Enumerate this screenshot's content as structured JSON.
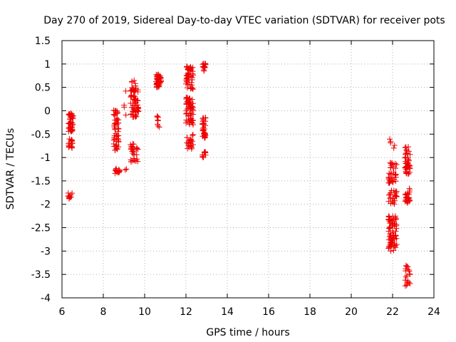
{
  "chart_data": {
    "type": "scatter",
    "title": "Day 270 of 2019, Sidereal Day-to-day VTEC variation (SDTVAR) for receiver pots",
    "xlabel": "GPS time / hours",
    "ylabel": "SDTVAR / TECUs",
    "xlim": [
      6,
      24
    ],
    "ylim": [
      -4,
      1.5
    ],
    "grid": true,
    "x_ticks": [
      "6",
      "8",
      "10",
      "12",
      "14",
      "16",
      "18",
      "20",
      "22",
      "24"
    ],
    "y_ticks": [
      "1.5",
      "1",
      "0.5",
      "0",
      "-0.5",
      "-1",
      "-1.5",
      "-2",
      "-2.5",
      "-3",
      "-3.5",
      "-4"
    ],
    "marker": "+",
    "color": "#ee0000",
    "clusters": [
      {
        "x": [
          6.3,
          6.55
        ],
        "y": [
          -0.45,
          -0.05
        ],
        "n": 45
      },
      {
        "x": [
          6.3,
          6.5
        ],
        "y": [
          -0.8,
          -0.6
        ],
        "n": 18
      },
      {
        "x": [
          6.3,
          6.5
        ],
        "y": [
          -1.88,
          -1.75
        ],
        "n": 12
      },
      {
        "x": [
          8.5,
          8.75
        ],
        "y": [
          -0.85,
          0.02
        ],
        "n": 55
      },
      {
        "x": [
          8.55,
          8.8
        ],
        "y": [
          -1.35,
          -1.22
        ],
        "n": 18
      },
      {
        "x": [
          9.0,
          9.1
        ],
        "y": [
          -0.1,
          0.5
        ],
        "n": 4
      },
      {
        "x": [
          9.05,
          9.15
        ],
        "y": [
          -1.27,
          -1.23
        ],
        "n": 2
      },
      {
        "x": [
          9.3,
          9.7
        ],
        "y": [
          -0.15,
          0.45
        ],
        "n": 55
      },
      {
        "x": [
          9.35,
          9.6
        ],
        "y": [
          0.45,
          0.65
        ],
        "n": 10
      },
      {
        "x": [
          9.3,
          9.7
        ],
        "y": [
          -1.1,
          -0.7
        ],
        "n": 30
      },
      {
        "x": [
          10.55,
          10.8
        ],
        "y": [
          0.5,
          0.8
        ],
        "n": 45
      },
      {
        "x": [
          10.6,
          10.75
        ],
        "y": [
          -0.35,
          -0.1
        ],
        "n": 8
      },
      {
        "x": [
          12.0,
          12.35
        ],
        "y": [
          0.45,
          0.95
        ],
        "n": 50
      },
      {
        "x": [
          12.0,
          12.35
        ],
        "y": [
          -0.3,
          0.3
        ],
        "n": 60
      },
      {
        "x": [
          12.0,
          12.35
        ],
        "y": [
          -0.85,
          -0.5
        ],
        "n": 25
      },
      {
        "x": [
          12.8,
          12.95
        ],
        "y": [
          0.85,
          1.02
        ],
        "n": 14
      },
      {
        "x": [
          12.8,
          12.95
        ],
        "y": [
          -0.6,
          -0.1
        ],
        "n": 35
      },
      {
        "x": [
          12.8,
          12.95
        ],
        "y": [
          -1.0,
          -0.85
        ],
        "n": 10
      },
      {
        "x": [
          21.8,
          22.1
        ],
        "y": [
          -0.85,
          -0.55
        ],
        "n": 5
      },
      {
        "x": [
          21.8,
          22.2
        ],
        "y": [
          -1.6,
          -1.1
        ],
        "n": 35
      },
      {
        "x": [
          21.8,
          22.2
        ],
        "y": [
          -2.0,
          -1.7
        ],
        "n": 25
      },
      {
        "x": [
          21.8,
          22.2
        ],
        "y": [
          -3.0,
          -2.25
        ],
        "n": 80
      },
      {
        "x": [
          22.6,
          22.85
        ],
        "y": [
          -1.35,
          -0.75
        ],
        "n": 45
      },
      {
        "x": [
          22.6,
          22.85
        ],
        "y": [
          -2.0,
          -1.65
        ],
        "n": 25
      },
      {
        "x": [
          22.6,
          22.85
        ],
        "y": [
          -3.75,
          -3.3
        ],
        "n": 20
      }
    ]
  }
}
